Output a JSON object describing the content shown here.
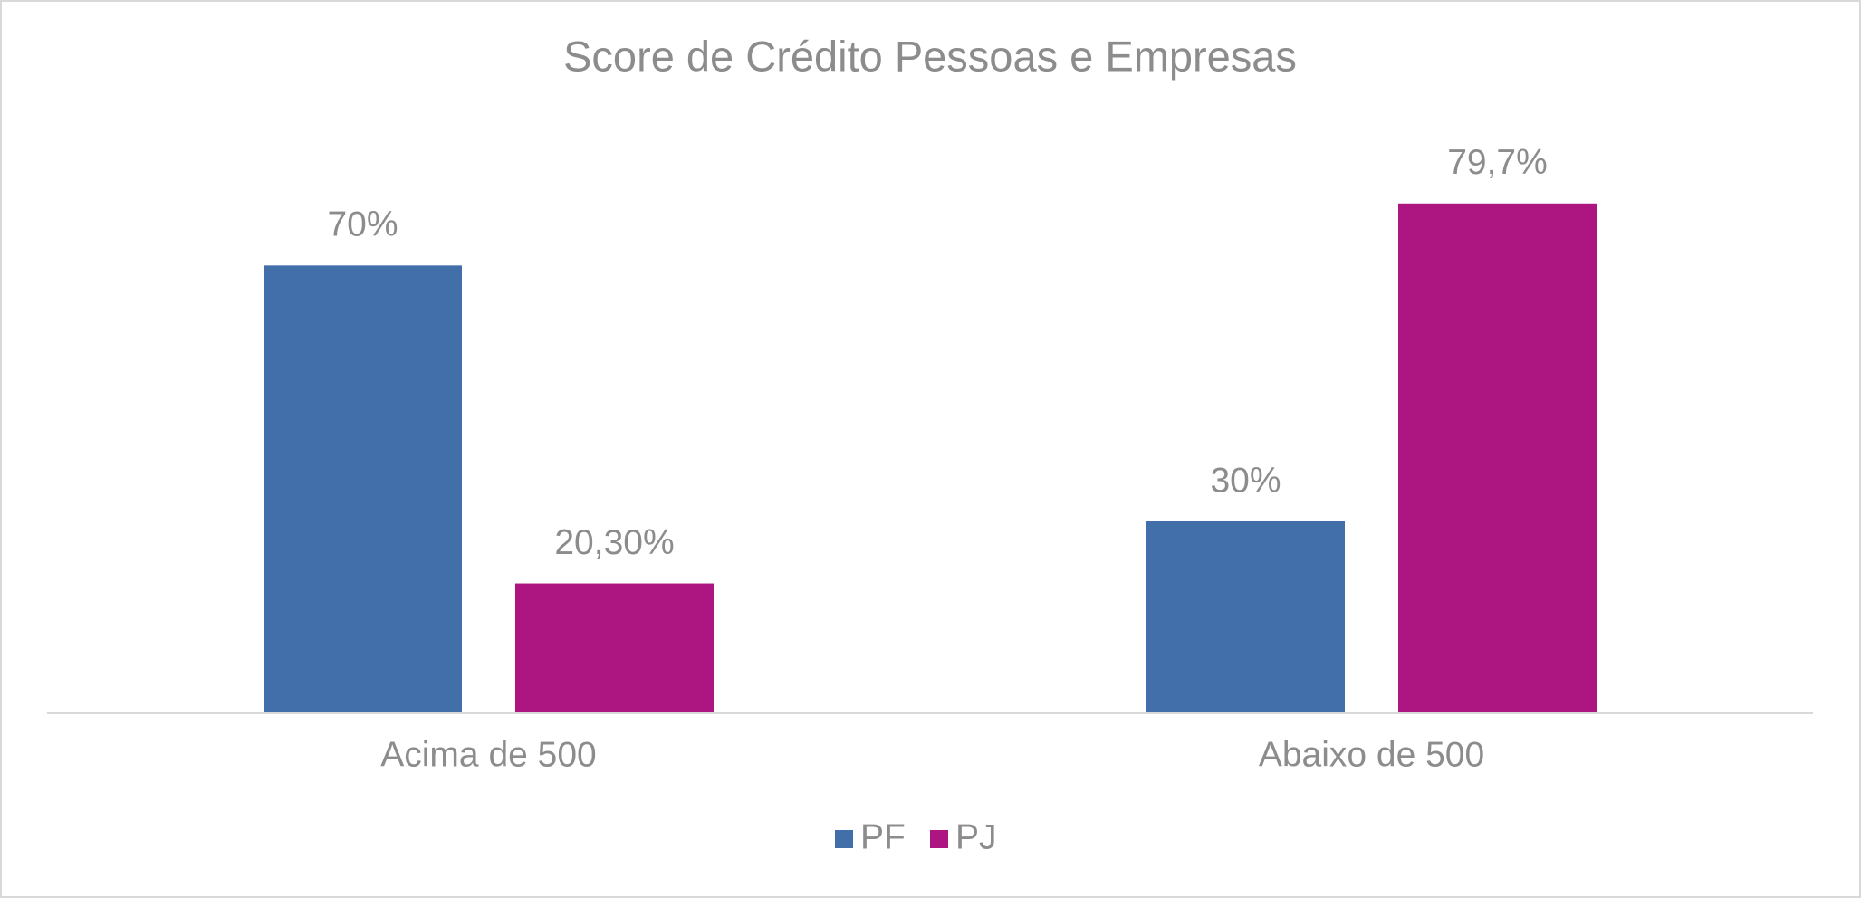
{
  "chart_data": {
    "type": "bar",
    "title": "Score de Crédito Pessoas e Empresas",
    "categories": [
      "Acima de 500",
      "Abaixo de 500"
    ],
    "series": [
      {
        "name": "PF",
        "color": "#426eaa",
        "values": [
          70,
          30
        ],
        "value_labels": [
          "70%",
          "30%"
        ]
      },
      {
        "name": "PJ",
        "color": "#ad1680",
        "values": [
          20.3,
          79.7
        ],
        "value_labels": [
          "20,30%",
          "79,7%"
        ]
      }
    ],
    "ylim": [
      0,
      90
    ],
    "legend": "bottom"
  }
}
